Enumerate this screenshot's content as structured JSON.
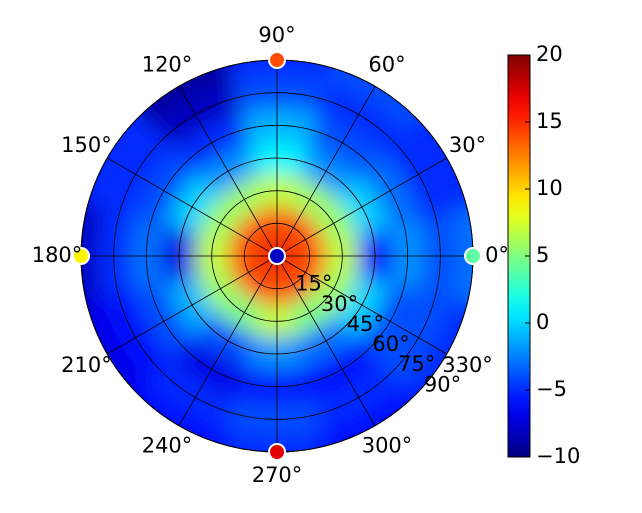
{
  "chart_data": {
    "type": "polar_heatmap",
    "colormap": "jet",
    "theta": [
      0,
      30,
      60,
      90,
      120,
      150,
      180,
      210,
      240,
      270,
      300,
      330
    ],
    "r": [
      0,
      15,
      30,
      45,
      60,
      75,
      90
    ],
    "values": [
      [
        17,
        14,
        7,
        -6,
        -2,
        -4,
        -3
      ],
      [
        17,
        14,
        6,
        0,
        -3,
        -5,
        -5
      ],
      [
        17,
        14,
        6,
        -2,
        -4,
        -5,
        -4
      ],
      [
        17,
        14,
        7,
        1,
        -1,
        -4,
        -5
      ],
      [
        17,
        14,
        6,
        -2,
        -5,
        -8,
        -9
      ],
      [
        17,
        14,
        6,
        0,
        -4,
        -5,
        -5
      ],
      [
        17,
        14,
        7,
        -7,
        -3,
        -5,
        -8
      ],
      [
        17,
        14,
        6,
        -1,
        -4,
        -6,
        -7
      ],
      [
        17,
        14,
        5,
        -4,
        -7,
        -5,
        -6
      ],
      [
        17,
        14,
        7,
        -2,
        -6,
        -4,
        -5
      ],
      [
        17,
        14,
        5,
        -3,
        -6,
        -5,
        -6
      ],
      [
        17,
        14,
        6,
        0,
        -4,
        -4,
        -5
      ]
    ],
    "points": [
      {
        "theta": 0,
        "r": 0,
        "value": -8
      },
      {
        "theta": 0,
        "r": 90,
        "value": 4
      },
      {
        "theta": 90,
        "r": 90,
        "value": 14
      },
      {
        "theta": 180,
        "r": 90,
        "value": 9
      },
      {
        "theta": 270,
        "r": 90,
        "value": 17
      }
    ],
    "rlim": [
      0,
      90
    ],
    "clim": [
      -10,
      20
    ],
    "xticks": [
      {
        "value": 0,
        "label": "0°"
      },
      {
        "value": 30,
        "label": "30°"
      },
      {
        "value": 60,
        "label": "60°"
      },
      {
        "value": 90,
        "label": "90°"
      },
      {
        "value": 120,
        "label": "120°"
      },
      {
        "value": 150,
        "label": "150°"
      },
      {
        "value": 180,
        "label": "180°"
      },
      {
        "value": 210,
        "label": "210°"
      },
      {
        "value": 240,
        "label": "240°"
      },
      {
        "value": 270,
        "label": "270°"
      },
      {
        "value": 300,
        "label": "300°"
      },
      {
        "value": 330,
        "label": "330°"
      }
    ],
    "yticks": [
      {
        "value": 15,
        "label": "15°"
      },
      {
        "value": 30,
        "label": "30°"
      },
      {
        "value": 45,
        "label": "45°"
      },
      {
        "value": 60,
        "label": "60°"
      },
      {
        "value": 75,
        "label": "75°"
      },
      {
        "value": 90,
        "label": "90°"
      }
    ],
    "colorbar_ticks": [
      {
        "value": -10,
        "label": "−10"
      },
      {
        "value": -5,
        "label": "−5"
      },
      0,
      5,
      10,
      15,
      20
    ]
  }
}
